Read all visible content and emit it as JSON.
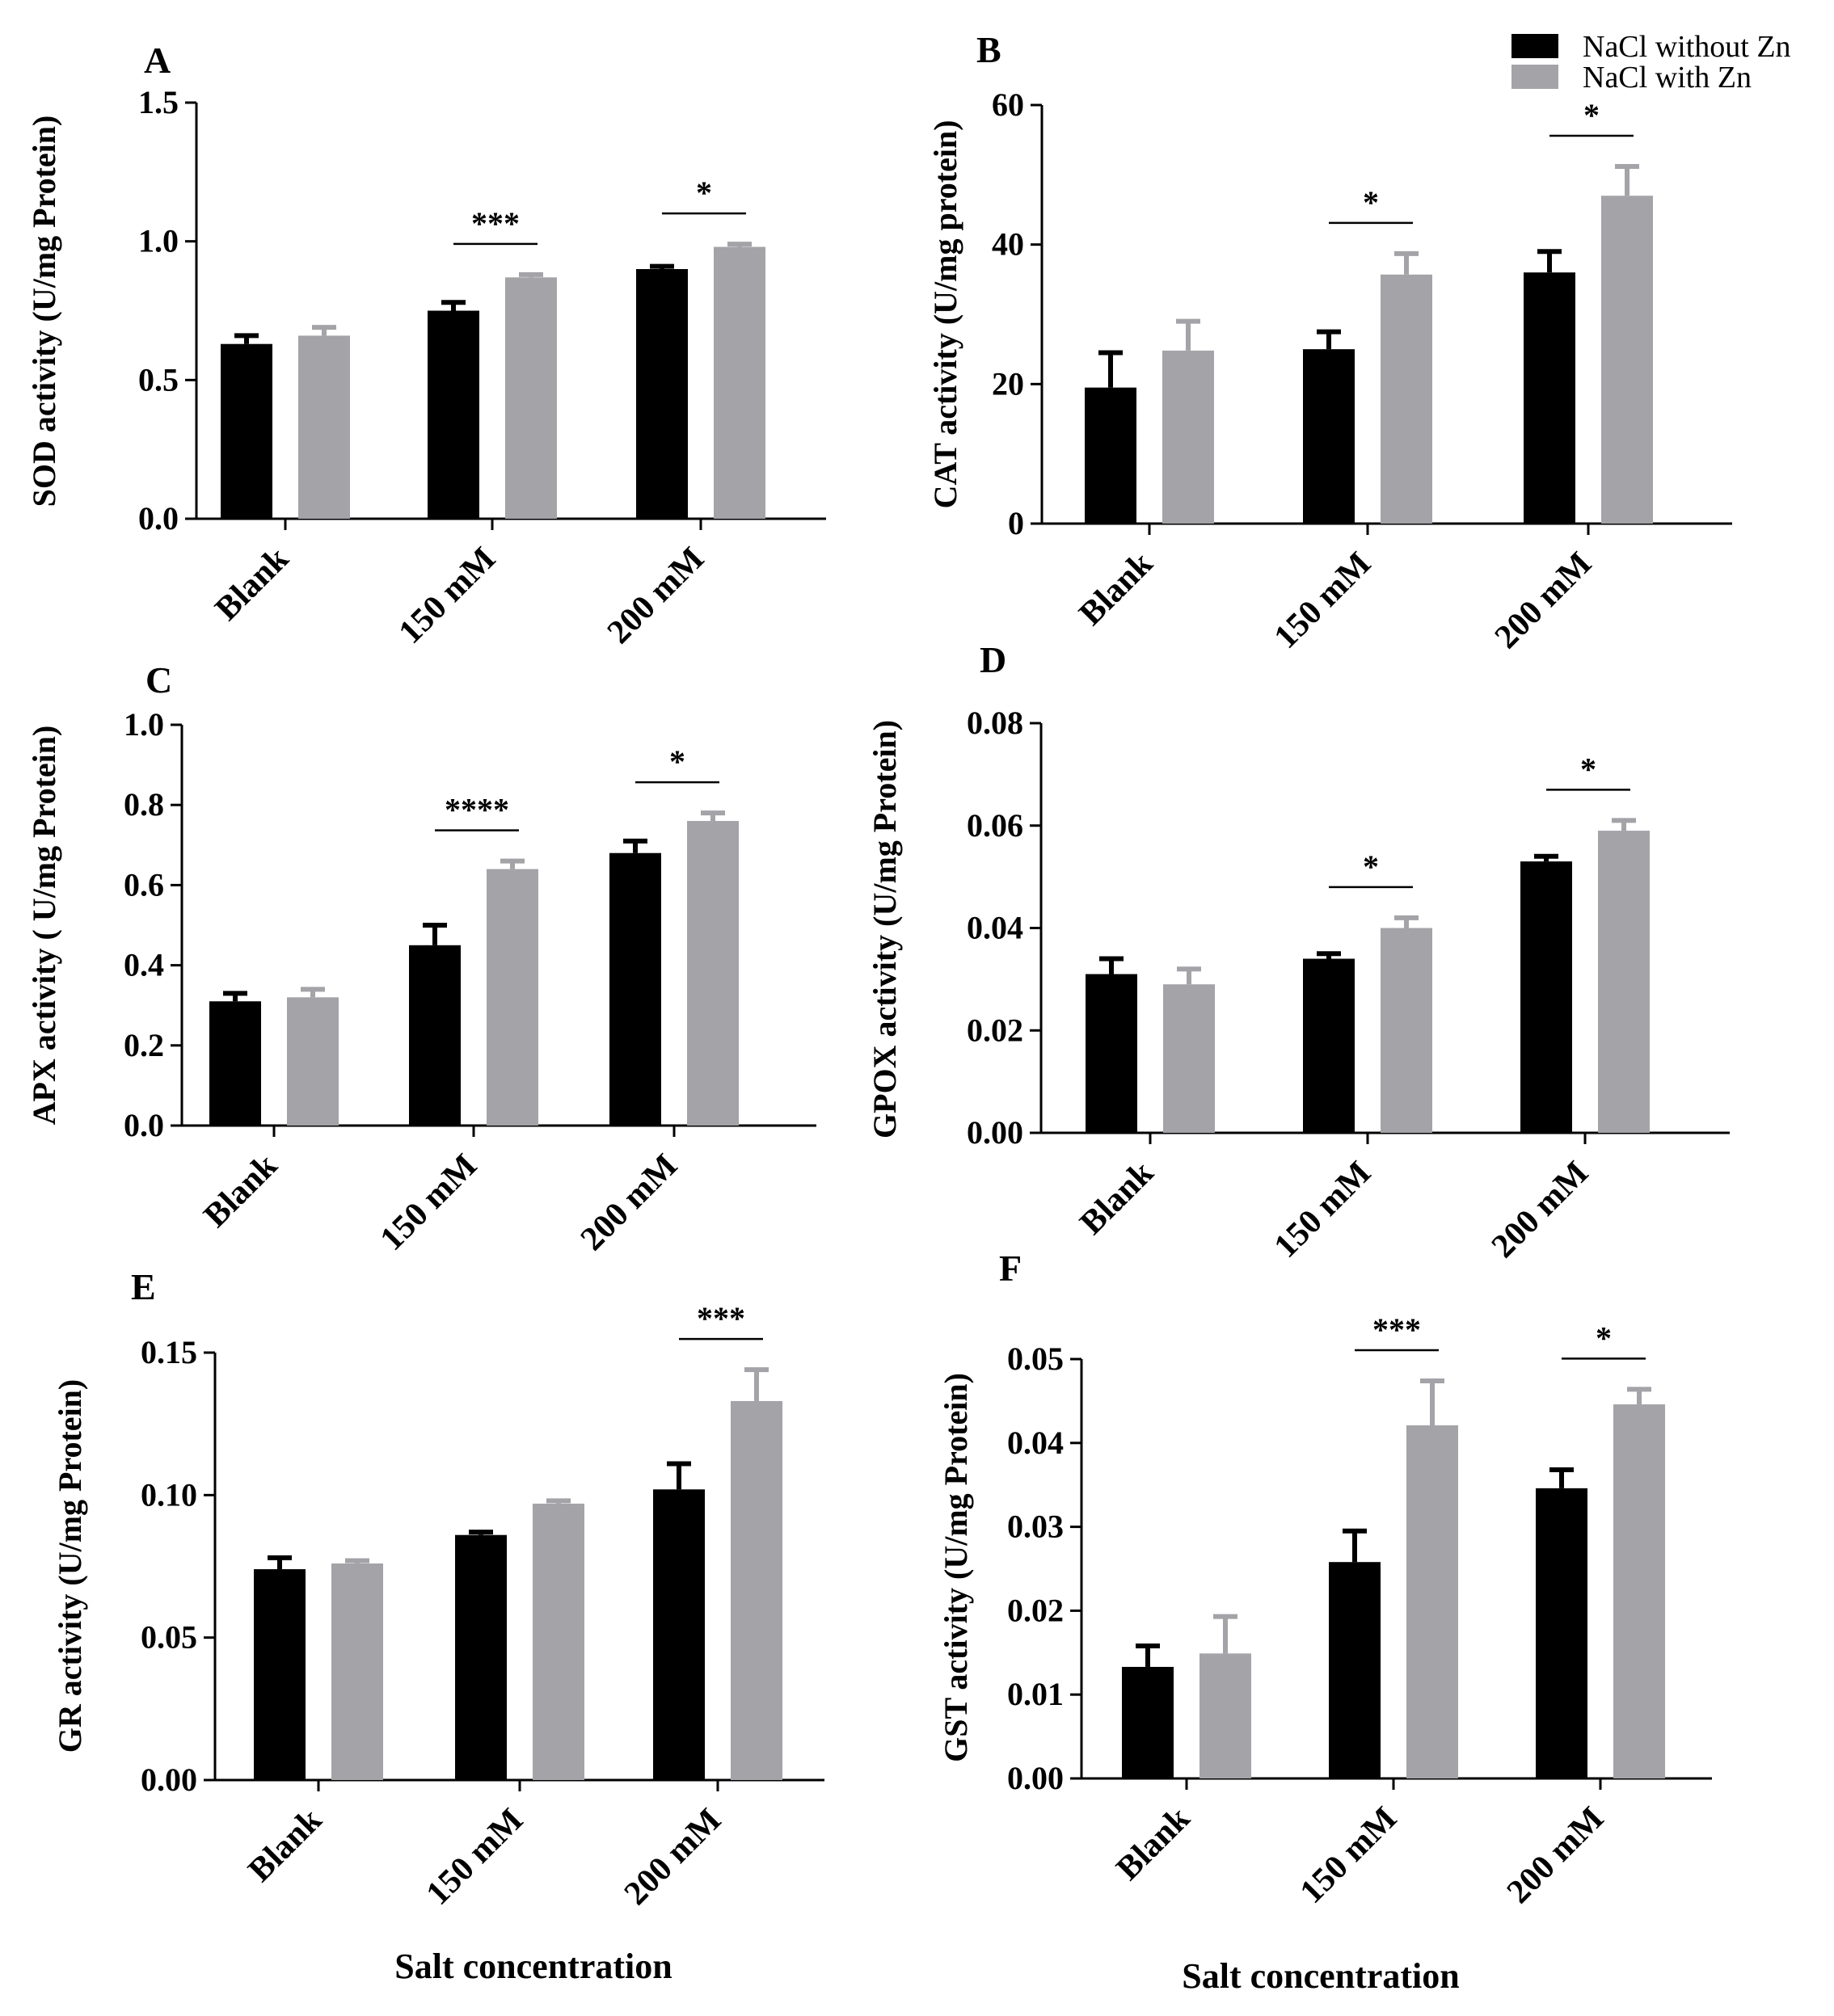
{
  "legend": {
    "entries": [
      {
        "label": "NaCl without Zn",
        "color": "#000000"
      },
      {
        "label": "NaCl with Zn",
        "color": "#a3a3a8"
      }
    ]
  },
  "chart_data": [
    {
      "id": "A",
      "panel_label": "A",
      "type": "bar",
      "ylabel": "SOD activity (U/mg Protein)",
      "xlabel": "",
      "categories": [
        "Blank",
        "150 mM",
        "200 mM"
      ],
      "ylim": [
        0,
        1.5
      ],
      "yticks": [
        "0.0",
        "0.5",
        "1.0",
        "1.5"
      ],
      "series": [
        {
          "name": "NaCl without Zn",
          "values": [
            0.63,
            0.75,
            0.9
          ],
          "errors": [
            0.03,
            0.03,
            0.01
          ]
        },
        {
          "name": "NaCl with Zn",
          "values": [
            0.66,
            0.87,
            0.98
          ],
          "errors": [
            0.03,
            0.01,
            0.01
          ]
        }
      ],
      "significance": [
        {
          "category_index": 1,
          "label": "***"
        },
        {
          "category_index": 2,
          "label": "*"
        }
      ]
    },
    {
      "id": "B",
      "panel_label": "B",
      "type": "bar",
      "ylabel": "CAT activity (U/mg protein)",
      "xlabel": "",
      "categories": [
        "Blank",
        "150 mM",
        "200 mM"
      ],
      "ylim": [
        0,
        60
      ],
      "yticks": [
        "0",
        "20",
        "40",
        "60"
      ],
      "series": [
        {
          "name": "NaCl without Zn",
          "values": [
            19.5,
            25,
            36
          ],
          "errors": [
            5,
            2.5,
            3
          ]
        },
        {
          "name": "NaCl with Zn",
          "values": [
            24.8,
            35.7,
            47
          ],
          "errors": [
            4.2,
            3,
            4.2
          ]
        }
      ],
      "significance": [
        {
          "category_index": 1,
          "label": "*"
        },
        {
          "category_index": 2,
          "label": "*"
        }
      ]
    },
    {
      "id": "C",
      "panel_label": "C",
      "type": "bar",
      "ylabel": "APX activity ( U/mg Protein)",
      "xlabel": "",
      "categories": [
        "Blank",
        "150 mM",
        "200 mM"
      ],
      "ylim": [
        0,
        1.0
      ],
      "yticks": [
        "0.0",
        "0.2",
        "0.4",
        "0.6",
        "0.8",
        "1.0"
      ],
      "series": [
        {
          "name": "NaCl without Zn",
          "values": [
            0.31,
            0.45,
            0.68
          ],
          "errors": [
            0.02,
            0.05,
            0.03
          ]
        },
        {
          "name": "NaCl with Zn",
          "values": [
            0.32,
            0.64,
            0.76
          ],
          "errors": [
            0.02,
            0.02,
            0.02
          ]
        }
      ],
      "significance": [
        {
          "category_index": 1,
          "label": "****"
        },
        {
          "category_index": 2,
          "label": "*"
        }
      ]
    },
    {
      "id": "D",
      "panel_label": "D",
      "type": "bar",
      "ylabel": "GPOX activity (U/mg Protein)",
      "xlabel": "",
      "categories": [
        "Blank",
        "150 mM",
        "200 mM"
      ],
      "ylim": [
        0,
        0.08
      ],
      "yticks": [
        "0.00",
        "0.02",
        "0.04",
        "0.06",
        "0.08"
      ],
      "series": [
        {
          "name": "NaCl without Zn",
          "values": [
            0.031,
            0.034,
            0.053
          ],
          "errors": [
            0.003,
            0.001,
            0.001
          ]
        },
        {
          "name": "NaCl with Zn",
          "values": [
            0.029,
            0.04,
            0.059
          ],
          "errors": [
            0.003,
            0.002,
            0.002
          ]
        }
      ],
      "significance": [
        {
          "category_index": 1,
          "label": "*"
        },
        {
          "category_index": 2,
          "label": "*"
        }
      ]
    },
    {
      "id": "E",
      "panel_label": "E",
      "type": "bar",
      "ylabel": "GR activity (U/mg Protein)",
      "xlabel": "Salt concentration",
      "categories": [
        "Blank",
        "150 mM",
        "200 mM"
      ],
      "ylim": [
        0,
        0.15
      ],
      "yticks": [
        "0.00",
        "0.05",
        "0.10",
        "0.15"
      ],
      "series": [
        {
          "name": "NaCl without Zn",
          "values": [
            0.074,
            0.086,
            0.102
          ],
          "errors": [
            0.004,
            0.001,
            0.009
          ]
        },
        {
          "name": "NaCl with Zn",
          "values": [
            0.076,
            0.097,
            0.133
          ],
          "errors": [
            0.001,
            0.001,
            0.011
          ]
        }
      ],
      "significance": [
        {
          "category_index": 2,
          "label": "***"
        }
      ]
    },
    {
      "id": "F",
      "panel_label": "F",
      "type": "bar",
      "ylabel": "GST activity (U/mg Protein)",
      "xlabel": "Salt concentration",
      "categories": [
        "Blank",
        "150 mM",
        "200 mM"
      ],
      "ylim": [
        0,
        0.05
      ],
      "yticks": [
        "0.00",
        "0.01",
        "0.02",
        "0.03",
        "0.04",
        "0.05"
      ],
      "series": [
        {
          "name": "NaCl without Zn",
          "values": [
            0.0133,
            0.0258,
            0.0346
          ],
          "errors": [
            0.0025,
            0.0037,
            0.0022
          ]
        },
        {
          "name": "NaCl with Zn",
          "values": [
            0.0149,
            0.0421,
            0.0446
          ],
          "errors": [
            0.0044,
            0.0053,
            0.0018
          ]
        }
      ],
      "significance": [
        {
          "category_index": 1,
          "label": "***"
        },
        {
          "category_index": 2,
          "label": "*"
        }
      ]
    }
  ]
}
